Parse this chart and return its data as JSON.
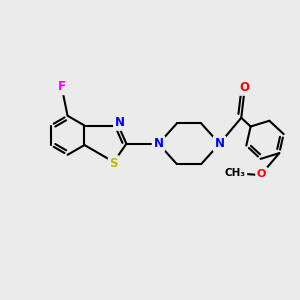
{
  "bg_color": "#ebebeb",
  "bond_color": "#000000",
  "bond_width": 1.5,
  "atom_colors": {
    "F": "#ff00ff",
    "S": "#bbbb00",
    "N": "#0000ff",
    "O": "#ff0000",
    "C": "#000000"
  },
  "figsize": [
    3.0,
    3.0
  ],
  "dpi": 100
}
